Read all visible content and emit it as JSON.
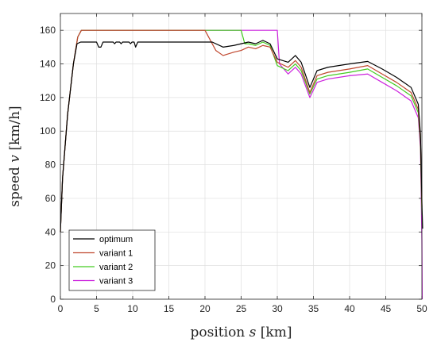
{
  "chart_data": {
    "type": "line",
    "title": "",
    "xlabel_prefix": "position ",
    "xlabel_var": "s",
    "xlabel_unit": " [km]",
    "ylabel_prefix": "speed ",
    "ylabel_var": "v",
    "ylabel_unit": " [km/h]",
    "xlim": [
      0,
      50
    ],
    "ylim": [
      0,
      170
    ],
    "xticks": [
      0,
      5,
      10,
      15,
      20,
      25,
      30,
      35,
      40,
      45,
      50
    ],
    "yticks": [
      0,
      20,
      40,
      60,
      80,
      100,
      120,
      140,
      160
    ],
    "grid": true,
    "legend_position": "bottom-left",
    "series": [
      {
        "name": "optimum",
        "color": "#000000",
        "points": [
          [
            0,
            40
          ],
          [
            0.3,
            72
          ],
          [
            1,
            110
          ],
          [
            1.8,
            140
          ],
          [
            2.3,
            152
          ],
          [
            2.8,
            153
          ],
          [
            5,
            153
          ],
          [
            5.3,
            150
          ],
          [
            5.6,
            150
          ],
          [
            5.9,
            153
          ],
          [
            7.3,
            153
          ],
          [
            7.5,
            152
          ],
          [
            7.7,
            153
          ],
          [
            8.2,
            153
          ],
          [
            8.4,
            152
          ],
          [
            8.6,
            153
          ],
          [
            9.5,
            153
          ],
          [
            9.7,
            152
          ],
          [
            9.9,
            153
          ],
          [
            10.2,
            153
          ],
          [
            10.4,
            150
          ],
          [
            10.7,
            153
          ],
          [
            21,
            153
          ],
          [
            22.5,
            150
          ],
          [
            24,
            151
          ],
          [
            25,
            152
          ],
          [
            26,
            153
          ],
          [
            27,
            152
          ],
          [
            28,
            154
          ],
          [
            29,
            152
          ],
          [
            30,
            143
          ],
          [
            31.5,
            141
          ],
          [
            32.5,
            145
          ],
          [
            33.3,
            141
          ],
          [
            34.5,
            126
          ],
          [
            35.5,
            136
          ],
          [
            37,
            138
          ],
          [
            40,
            140
          ],
          [
            42.5,
            141.5
          ],
          [
            44.5,
            137
          ],
          [
            46.5,
            132
          ],
          [
            48.5,
            126
          ],
          [
            49.5,
            116
          ],
          [
            49.8,
            98
          ],
          [
            50,
            58
          ],
          [
            50.1,
            42
          ]
        ]
      },
      {
        "name": "variant 1",
        "color": "#c0472e",
        "points": [
          [
            0,
            40
          ],
          [
            0.3,
            72
          ],
          [
            1,
            110
          ],
          [
            1.8,
            140
          ],
          [
            2.4,
            156
          ],
          [
            2.9,
            160
          ],
          [
            20,
            160
          ],
          [
            21.5,
            148
          ],
          [
            22.5,
            145
          ],
          [
            24,
            147
          ],
          [
            25,
            148
          ],
          [
            26,
            150
          ],
          [
            27,
            149
          ],
          [
            28,
            151
          ],
          [
            29,
            150
          ],
          [
            30,
            141
          ],
          [
            31.5,
            138
          ],
          [
            32.5,
            142
          ],
          [
            33.3,
            138
          ],
          [
            34.5,
            123
          ],
          [
            35.5,
            133
          ],
          [
            37,
            135
          ],
          [
            40,
            137
          ],
          [
            42.5,
            139
          ],
          [
            44.5,
            134
          ],
          [
            46.5,
            129
          ],
          [
            48.5,
            123
          ],
          [
            49.5,
            113
          ],
          [
            49.8,
            95
          ],
          [
            50,
            55
          ]
        ]
      },
      {
        "name": "variant 2",
        "color": "#44cc22",
        "points": [
          [
            0,
            40
          ],
          [
            0.3,
            72
          ],
          [
            1,
            110
          ],
          [
            1.8,
            140
          ],
          [
            2.4,
            156
          ],
          [
            2.9,
            160
          ],
          [
            25,
            160
          ],
          [
            25.5,
            152
          ],
          [
            26,
            152
          ],
          [
            27,
            151
          ],
          [
            28,
            153
          ],
          [
            29,
            151
          ],
          [
            30,
            139
          ],
          [
            31.5,
            136
          ],
          [
            32.5,
            140
          ],
          [
            33.3,
            136
          ],
          [
            34.5,
            122
          ],
          [
            35.5,
            131
          ],
          [
            37,
            133
          ],
          [
            40,
            135
          ],
          [
            42.5,
            137
          ],
          [
            44.5,
            132
          ],
          [
            46.5,
            127
          ],
          [
            48.5,
            121
          ],
          [
            49.5,
            111
          ],
          [
            49.8,
            93
          ],
          [
            50,
            50
          ]
        ]
      },
      {
        "name": "variant 3",
        "color": "#cc22dd",
        "points": [
          [
            0,
            40
          ],
          [
            0.3,
            72
          ],
          [
            1,
            110
          ],
          [
            1.8,
            140
          ],
          [
            2.4,
            156
          ],
          [
            2.9,
            160
          ],
          [
            30,
            160
          ],
          [
            30.3,
            140
          ],
          [
            31.5,
            134
          ],
          [
            32.5,
            138
          ],
          [
            33.3,
            134
          ],
          [
            34.5,
            120
          ],
          [
            35.5,
            129
          ],
          [
            37,
            131
          ],
          [
            40,
            133
          ],
          [
            42.5,
            134
          ],
          [
            44.5,
            129
          ],
          [
            46.5,
            124
          ],
          [
            48.5,
            118
          ],
          [
            49.5,
            108
          ],
          [
            49.8,
            90
          ],
          [
            50,
            35
          ],
          [
            50.05,
            0
          ]
        ]
      }
    ]
  }
}
